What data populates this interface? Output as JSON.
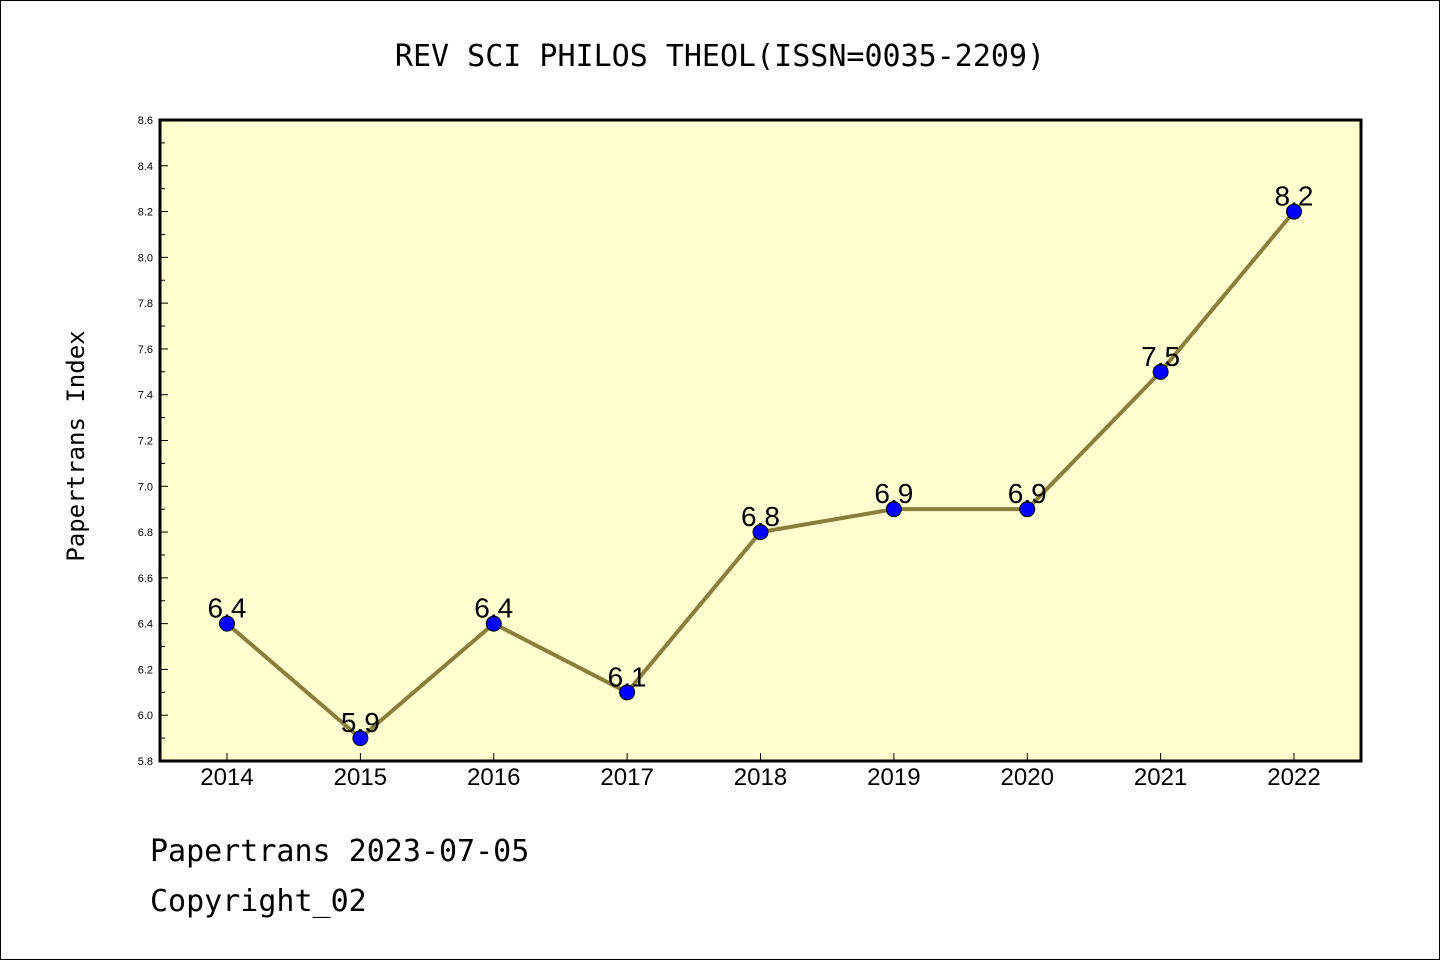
{
  "chart_data": {
    "type": "line",
    "title": "REV SCI PHILOS THEOL(ISSN=0035-2209)",
    "xlabel": "",
    "ylabel": "Papertrans Index",
    "categories": [
      "2014",
      "2015",
      "2016",
      "2017",
      "2018",
      "2019",
      "2020",
      "2021",
      "2022"
    ],
    "series": [
      {
        "values": [
          6.4,
          5.9,
          6.4,
          6.1,
          6.8,
          6.9,
          6.9,
          7.5,
          8.2
        ]
      }
    ],
    "data_labels": [
      "6.4",
      "5.9",
      "6.4",
      "6.1",
      "6.8",
      "6.9",
      "6.9",
      "7.5",
      "8.2"
    ],
    "ylim": [
      5.8,
      8.6
    ],
    "yticks": [
      "5.8",
      "6.0",
      "6.2",
      "6.4",
      "6.6",
      "6.8",
      "7.0",
      "7.2",
      "7.4",
      "7.6",
      "7.8",
      "8.0",
      "8.2",
      "8.4",
      "8.6"
    ],
    "grid": false,
    "colors": {
      "plot_background": "#ffffd0",
      "line": "#8b7d3a",
      "marker": "#0000ff"
    }
  },
  "footer": {
    "line1": "Papertrans 2023-07-05",
    "line2": "Copyright_02"
  }
}
